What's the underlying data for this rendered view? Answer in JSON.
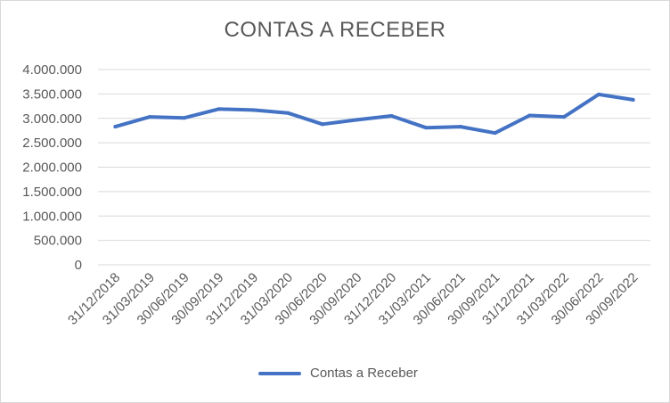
{
  "chart_data": {
    "type": "line",
    "title": "CONTAS A RECEBER",
    "xlabel": "",
    "ylabel": "",
    "categories": [
      "31/12/2018",
      "31/03/2019",
      "30/06/2019",
      "30/09/2019",
      "31/12/2019",
      "31/03/2020",
      "30/06/2020",
      "30/09/2020",
      "31/12/2020",
      "31/03/2021",
      "30/06/2021",
      "30/09/2021",
      "31/12/2021",
      "31/03/2022",
      "30/06/2022",
      "30/09/2022"
    ],
    "series": [
      {
        "name": "Contas a Receber",
        "color": "#4472c4",
        "values": [
          2830000,
          3030000,
          3010000,
          3190000,
          3170000,
          3110000,
          2880000,
          2970000,
          3050000,
          2810000,
          2830000,
          2700000,
          3060000,
          3030000,
          3490000,
          3380000
        ]
      }
    ],
    "ylim": [
      0,
      4000000
    ],
    "yticks": [
      {
        "value": 0,
        "label": "0"
      },
      {
        "value": 500000,
        "label": "500.000"
      },
      {
        "value": 1000000,
        "label": "1.000.000"
      },
      {
        "value": 1500000,
        "label": "1.500.000"
      },
      {
        "value": 2000000,
        "label": "2.000.000"
      },
      {
        "value": 2500000,
        "label": "2.500.000"
      },
      {
        "value": 3000000,
        "label": "3.000.000"
      },
      {
        "value": 3500000,
        "label": "3.500.000"
      },
      {
        "value": 4000000,
        "label": "4.000.000"
      }
    ],
    "grid": true,
    "legend": "bottom"
  }
}
